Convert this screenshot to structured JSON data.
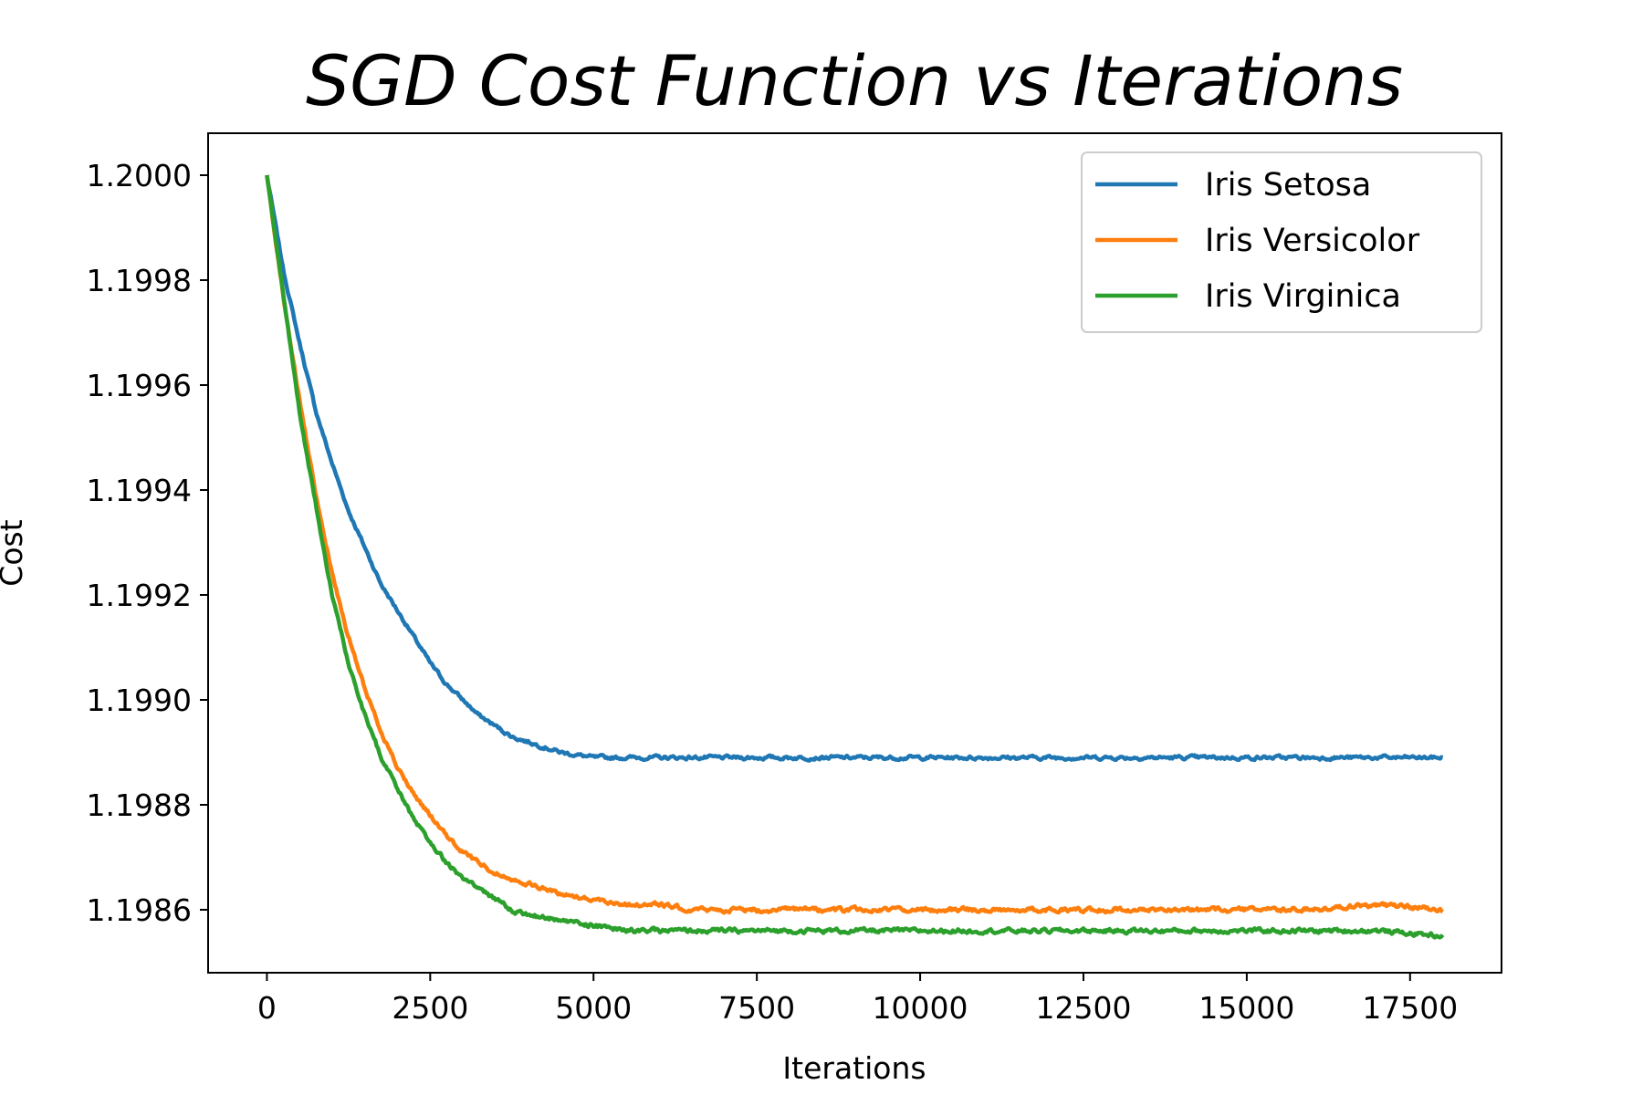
{
  "chart_data": {
    "type": "line",
    "title": "SGD Cost Function vs Iterations",
    "xlabel": "Iterations",
    "ylabel": "Cost",
    "xlim": [
      -900,
      18900
    ],
    "ylim": [
      1.19848,
      1.20008
    ],
    "xticks": [
      0,
      2500,
      5000,
      7500,
      10000,
      12500,
      15000,
      17500
    ],
    "xtick_labels": [
      "0",
      "2500",
      "5000",
      "7500",
      "10000",
      "12500",
      "15000",
      "17500"
    ],
    "yticks": [
      1.1986,
      1.1988,
      1.199,
      1.1992,
      1.1994,
      1.1996,
      1.1998,
      1.2
    ],
    "ytick_labels": [
      "1.1986",
      "1.1988",
      "1.1990",
      "1.1992",
      "1.1994",
      "1.1996",
      "1.1998",
      "1.2000"
    ],
    "grid": false,
    "legend_position": "top-right",
    "series": [
      {
        "name": "Iris Setosa",
        "color": "#1f77b4",
        "x": [
          0,
          250,
          500,
          750,
          1000,
          1250,
          1500,
          1750,
          2000,
          2250,
          2500,
          2750,
          3000,
          3250,
          3500,
          3750,
          4000,
          4500,
          5000,
          5500,
          6000,
          6500,
          7000,
          7500,
          8000,
          9000,
          10000,
          11000,
          12000,
          13000,
          14000,
          15000,
          16000,
          17000,
          18000
        ],
        "y": [
          1.2,
          1.19982,
          1.19968,
          1.19955,
          1.19945,
          1.19936,
          1.19929,
          1.19922,
          1.19917,
          1.19912,
          1.19907,
          1.19903,
          1.199,
          1.19897,
          1.19895,
          1.19893,
          1.19892,
          1.1989,
          1.19889,
          1.19889,
          1.19889,
          1.19889,
          1.19889,
          1.19889,
          1.19889,
          1.19889,
          1.19889,
          1.19889,
          1.19889,
          1.19889,
          1.19889,
          1.19889,
          1.19889,
          1.19889,
          1.19889
        ]
      },
      {
        "name": "Iris Versicolor",
        "color": "#ff7f0e",
        "x": [
          0,
          250,
          500,
          750,
          1000,
          1250,
          1500,
          1750,
          2000,
          2250,
          2500,
          2750,
          3000,
          3250,
          3500,
          3750,
          4000,
          4500,
          5000,
          5500,
          6000,
          6500,
          7000,
          7500,
          8000,
          9000,
          10000,
          11000,
          12000,
          13000,
          14000,
          15000,
          16000,
          17000,
          18000
        ],
        "y": [
          1.2,
          1.19977,
          1.19957,
          1.19939,
          1.19924,
          1.19912,
          1.19902,
          1.19894,
          1.19887,
          1.19882,
          1.19878,
          1.19874,
          1.19871,
          1.19869,
          1.19867,
          1.19866,
          1.19865,
          1.19863,
          1.19862,
          1.19861,
          1.19861,
          1.1986,
          1.1986,
          1.1986,
          1.1986,
          1.1986,
          1.1986,
          1.1986,
          1.1986,
          1.1986,
          1.1986,
          1.1986,
          1.1986,
          1.19861,
          1.1986
        ]
      },
      {
        "name": "Iris Virginica",
        "color": "#2ca02c",
        "x": [
          0,
          250,
          500,
          750,
          1000,
          1250,
          1500,
          1750,
          2000,
          2250,
          2500,
          2750,
          3000,
          3250,
          3500,
          3750,
          4000,
          4500,
          5000,
          5500,
          6000,
          6500,
          7000,
          7500,
          8000,
          9000,
          10000,
          11000,
          12000,
          13000,
          14000,
          15000,
          16000,
          17000,
          18000
        ],
        "y": [
          1.2,
          1.19977,
          1.19955,
          1.19937,
          1.1992,
          1.19907,
          1.19897,
          1.19889,
          1.19883,
          1.19877,
          1.19873,
          1.19869,
          1.19866,
          1.19864,
          1.19862,
          1.1986,
          1.19859,
          1.19858,
          1.19857,
          1.19856,
          1.19856,
          1.19856,
          1.19856,
          1.19856,
          1.19856,
          1.19856,
          1.19856,
          1.19856,
          1.19856,
          1.19856,
          1.19856,
          1.19856,
          1.19856,
          1.19856,
          1.19855
        ]
      }
    ]
  }
}
